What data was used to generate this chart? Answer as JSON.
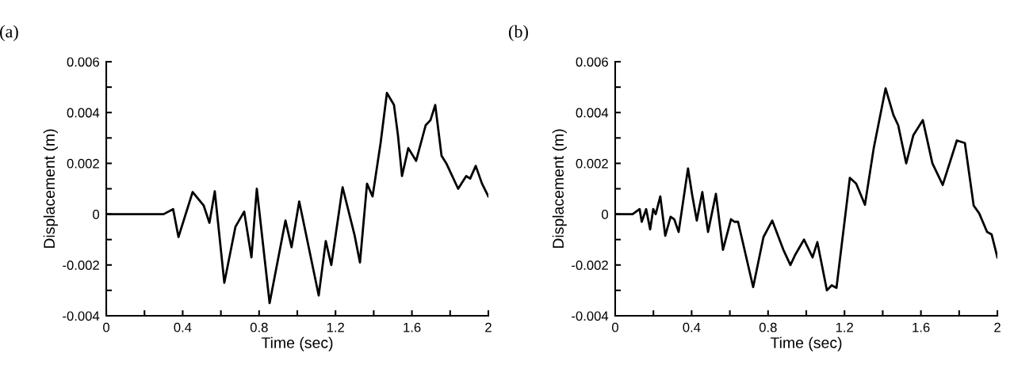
{
  "chart_data": [
    {
      "type": "line",
      "title": "(a)",
      "xlabel": "Time (sec)",
      "ylabel": "Displacement (m)",
      "series": [
        {
          "color": "#000000",
          "x": [
            0,
            0.3,
            0.35,
            0.378,
            0.452,
            0.51,
            0.54,
            0.568,
            0.618,
            0.676,
            0.722,
            0.76,
            0.788,
            0.855,
            0.938,
            0.97,
            1.01,
            1.112,
            1.149,
            1.178,
            1.237,
            1.299,
            1.328,
            1.365,
            1.394,
            1.436,
            1.469,
            1.506,
            1.527,
            1.548,
            1.581,
            1.622,
            1.672,
            1.697,
            1.722,
            1.755,
            1.78,
            1.842,
            1.884,
            1.905,
            1.934,
            1.967,
            2
          ],
          "values": [
            0,
            0,
            0.0002,
            -0.0009,
            0.00087,
            0.00034,
            -0.00034,
            0.0009,
            -0.0027,
            -0.0005,
            0.0001,
            -0.0017,
            0.001,
            -0.0035,
            -0.00025,
            -0.0013,
            0.0005,
            -0.0032,
            -0.00106,
            -0.002,
            0.00106,
            -0.0008,
            -0.0019,
            0.0012,
            0.0007,
            0.0028,
            0.00477,
            0.0043,
            0.0031,
            0.0015,
            0.0026,
            0.0021,
            0.0035,
            0.0037,
            0.0043,
            0.0023,
            0.002,
            0.001,
            0.0015,
            0.0014,
            0.0019,
            0.0012,
            0.0007
          ]
        }
      ],
      "xlim": [
        0,
        2
      ],
      "xticks": [
        0,
        {
          "value": 0.2,
          "label": null
        },
        0.4,
        {
          "value": 0.6,
          "label": null
        },
        0.8,
        {
          "value": 1.0,
          "label": null
        },
        1.2,
        {
          "value": 1.4,
          "label": null
        },
        1.6,
        {
          "value": 1.8,
          "label": null
        },
        2
      ],
      "ylim": [
        -0.004,
        0.006
      ],
      "yticks": [
        -0.004,
        {
          "value": -0.003,
          "label": null
        },
        -0.002,
        {
          "value": -0.001,
          "label": null
        },
        0,
        {
          "value": 0.001,
          "label": null
        },
        0.002,
        {
          "value": 0.003,
          "label": null
        },
        0.004,
        {
          "value": 0.005,
          "label": null
        },
        0.006
      ],
      "grid": false,
      "legend": false,
      "marker": "none",
      "line_style": "solid"
    },
    {
      "type": "line",
      "title": "(b)",
      "xlabel": "Time (sec)",
      "ylabel": "Displacement (m)",
      "series": [
        {
          "color": "#000000",
          "x": [
            0,
            0.091,
            0.128,
            0.139,
            0.162,
            0.183,
            0.199,
            0.212,
            0.236,
            0.262,
            0.29,
            0.309,
            0.332,
            0.381,
            0.403,
            0.427,
            0.456,
            0.486,
            0.527,
            0.564,
            0.606,
            0.624,
            0.643,
            0.722,
            0.776,
            0.822,
            0.88,
            0.917,
            0.942,
            0.988,
            1.033,
            1.058,
            1.108,
            1.133,
            1.158,
            1.228,
            1.261,
            1.307,
            1.353,
            1.415,
            1.456,
            1.481,
            1.523,
            1.56,
            1.61,
            1.66,
            1.714,
            1.788,
            1.83,
            1.876,
            1.905,
            1.946,
            1.97,
            2
          ],
          "values": [
            0,
            0,
            0.0002,
            -0.0003,
            0.0002,
            -0.0006,
            0.0002,
            0,
            0.0007,
            -0.00085,
            -0.0001,
            -0.0002,
            -0.0007,
            0.0018,
            0.00075,
            -0.00025,
            0.00087,
            -0.0007,
            0.0008,
            -0.0014,
            -0.0002,
            -0.0003,
            -0.0003,
            -0.00287,
            -0.0009,
            -0.00025,
            -0.0014,
            -0.002,
            -0.0016,
            -0.001,
            -0.0017,
            -0.0011,
            -0.003,
            -0.0028,
            -0.0029,
            0.00143,
            0.0012,
            0.00037,
            0.0026,
            0.00495,
            0.0039,
            0.0035,
            0.002,
            0.0031,
            0.0037,
            0.002,
            0.00115,
            0.0029,
            0.0028,
            0.00034,
            3e-05,
            -0.0007,
            -0.0008,
            -0.0017
          ]
        }
      ],
      "xlim": [
        0,
        2
      ],
      "xticks": [
        0,
        {
          "value": 0.2,
          "label": null
        },
        0.4,
        {
          "value": 0.6,
          "label": null
        },
        0.8,
        {
          "value": 1.0,
          "label": null
        },
        1.2,
        {
          "value": 1.4,
          "label": null
        },
        1.6,
        {
          "value": 1.8,
          "label": null
        },
        2
      ],
      "ylim": [
        -0.004,
        0.006
      ],
      "yticks": [
        -0.004,
        {
          "value": -0.003,
          "label": null
        },
        -0.002,
        {
          "value": -0.001,
          "label": null
        },
        0,
        {
          "value": 0.001,
          "label": null
        },
        0.002,
        {
          "value": 0.003,
          "label": null
        },
        0.004,
        {
          "value": 0.005,
          "label": null
        },
        0.006
      ],
      "grid": false,
      "legend": false,
      "marker": "none",
      "line_style": "solid"
    }
  ]
}
